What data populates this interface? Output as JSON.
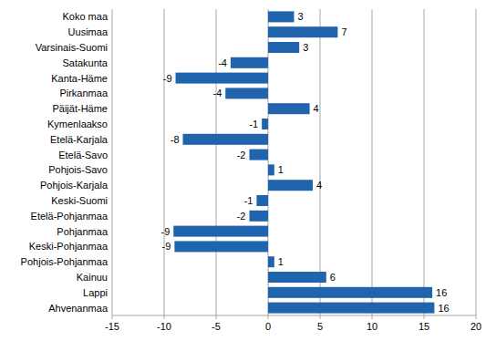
{
  "chart_data": {
    "type": "bar",
    "orientation": "horizontal",
    "categories": [
      "Koko maa",
      "Uusimaa",
      "Varsinais-Suomi",
      "Satakunta",
      "Kanta-Häme",
      "Pirkanmaa",
      "Päijät-Häme",
      "Kymenlaakso",
      "Etelä-Karjala",
      "Etelä-Savo",
      "Pohjois-Savo",
      "Pohjois-Karjala",
      "Keski-Suomi",
      "Etelä-Pohjanmaa",
      "Pohjanmaa",
      "Keski-Pohjanmaa",
      "Pohjois-Pohjanmaa",
      "Kainuu",
      "Lappi",
      "Ahvenanmaa"
    ],
    "values": [
      2.5,
      6.7,
      3.0,
      -3.6,
      -8.9,
      -4.1,
      4.0,
      -0.6,
      -8.2,
      -1.8,
      0.6,
      4.3,
      -1.1,
      -1.8,
      -9.1,
      -9.0,
      0.6,
      5.6,
      15.8,
      16.0
    ],
    "value_labels": [
      "3",
      "7",
      "3",
      "-4",
      "-9",
      "-4",
      "4",
      "-1",
      "-8",
      "-2",
      "1",
      "4",
      "-1",
      "-2",
      "-9",
      "-9",
      "1",
      "6",
      "16",
      "16"
    ],
    "color": "#1f64ad",
    "xlim": [
      -15,
      20
    ],
    "xticks": [
      -15,
      -10,
      -5,
      0,
      5,
      10,
      15,
      20
    ],
    "grid": true,
    "data_labels": true
  }
}
